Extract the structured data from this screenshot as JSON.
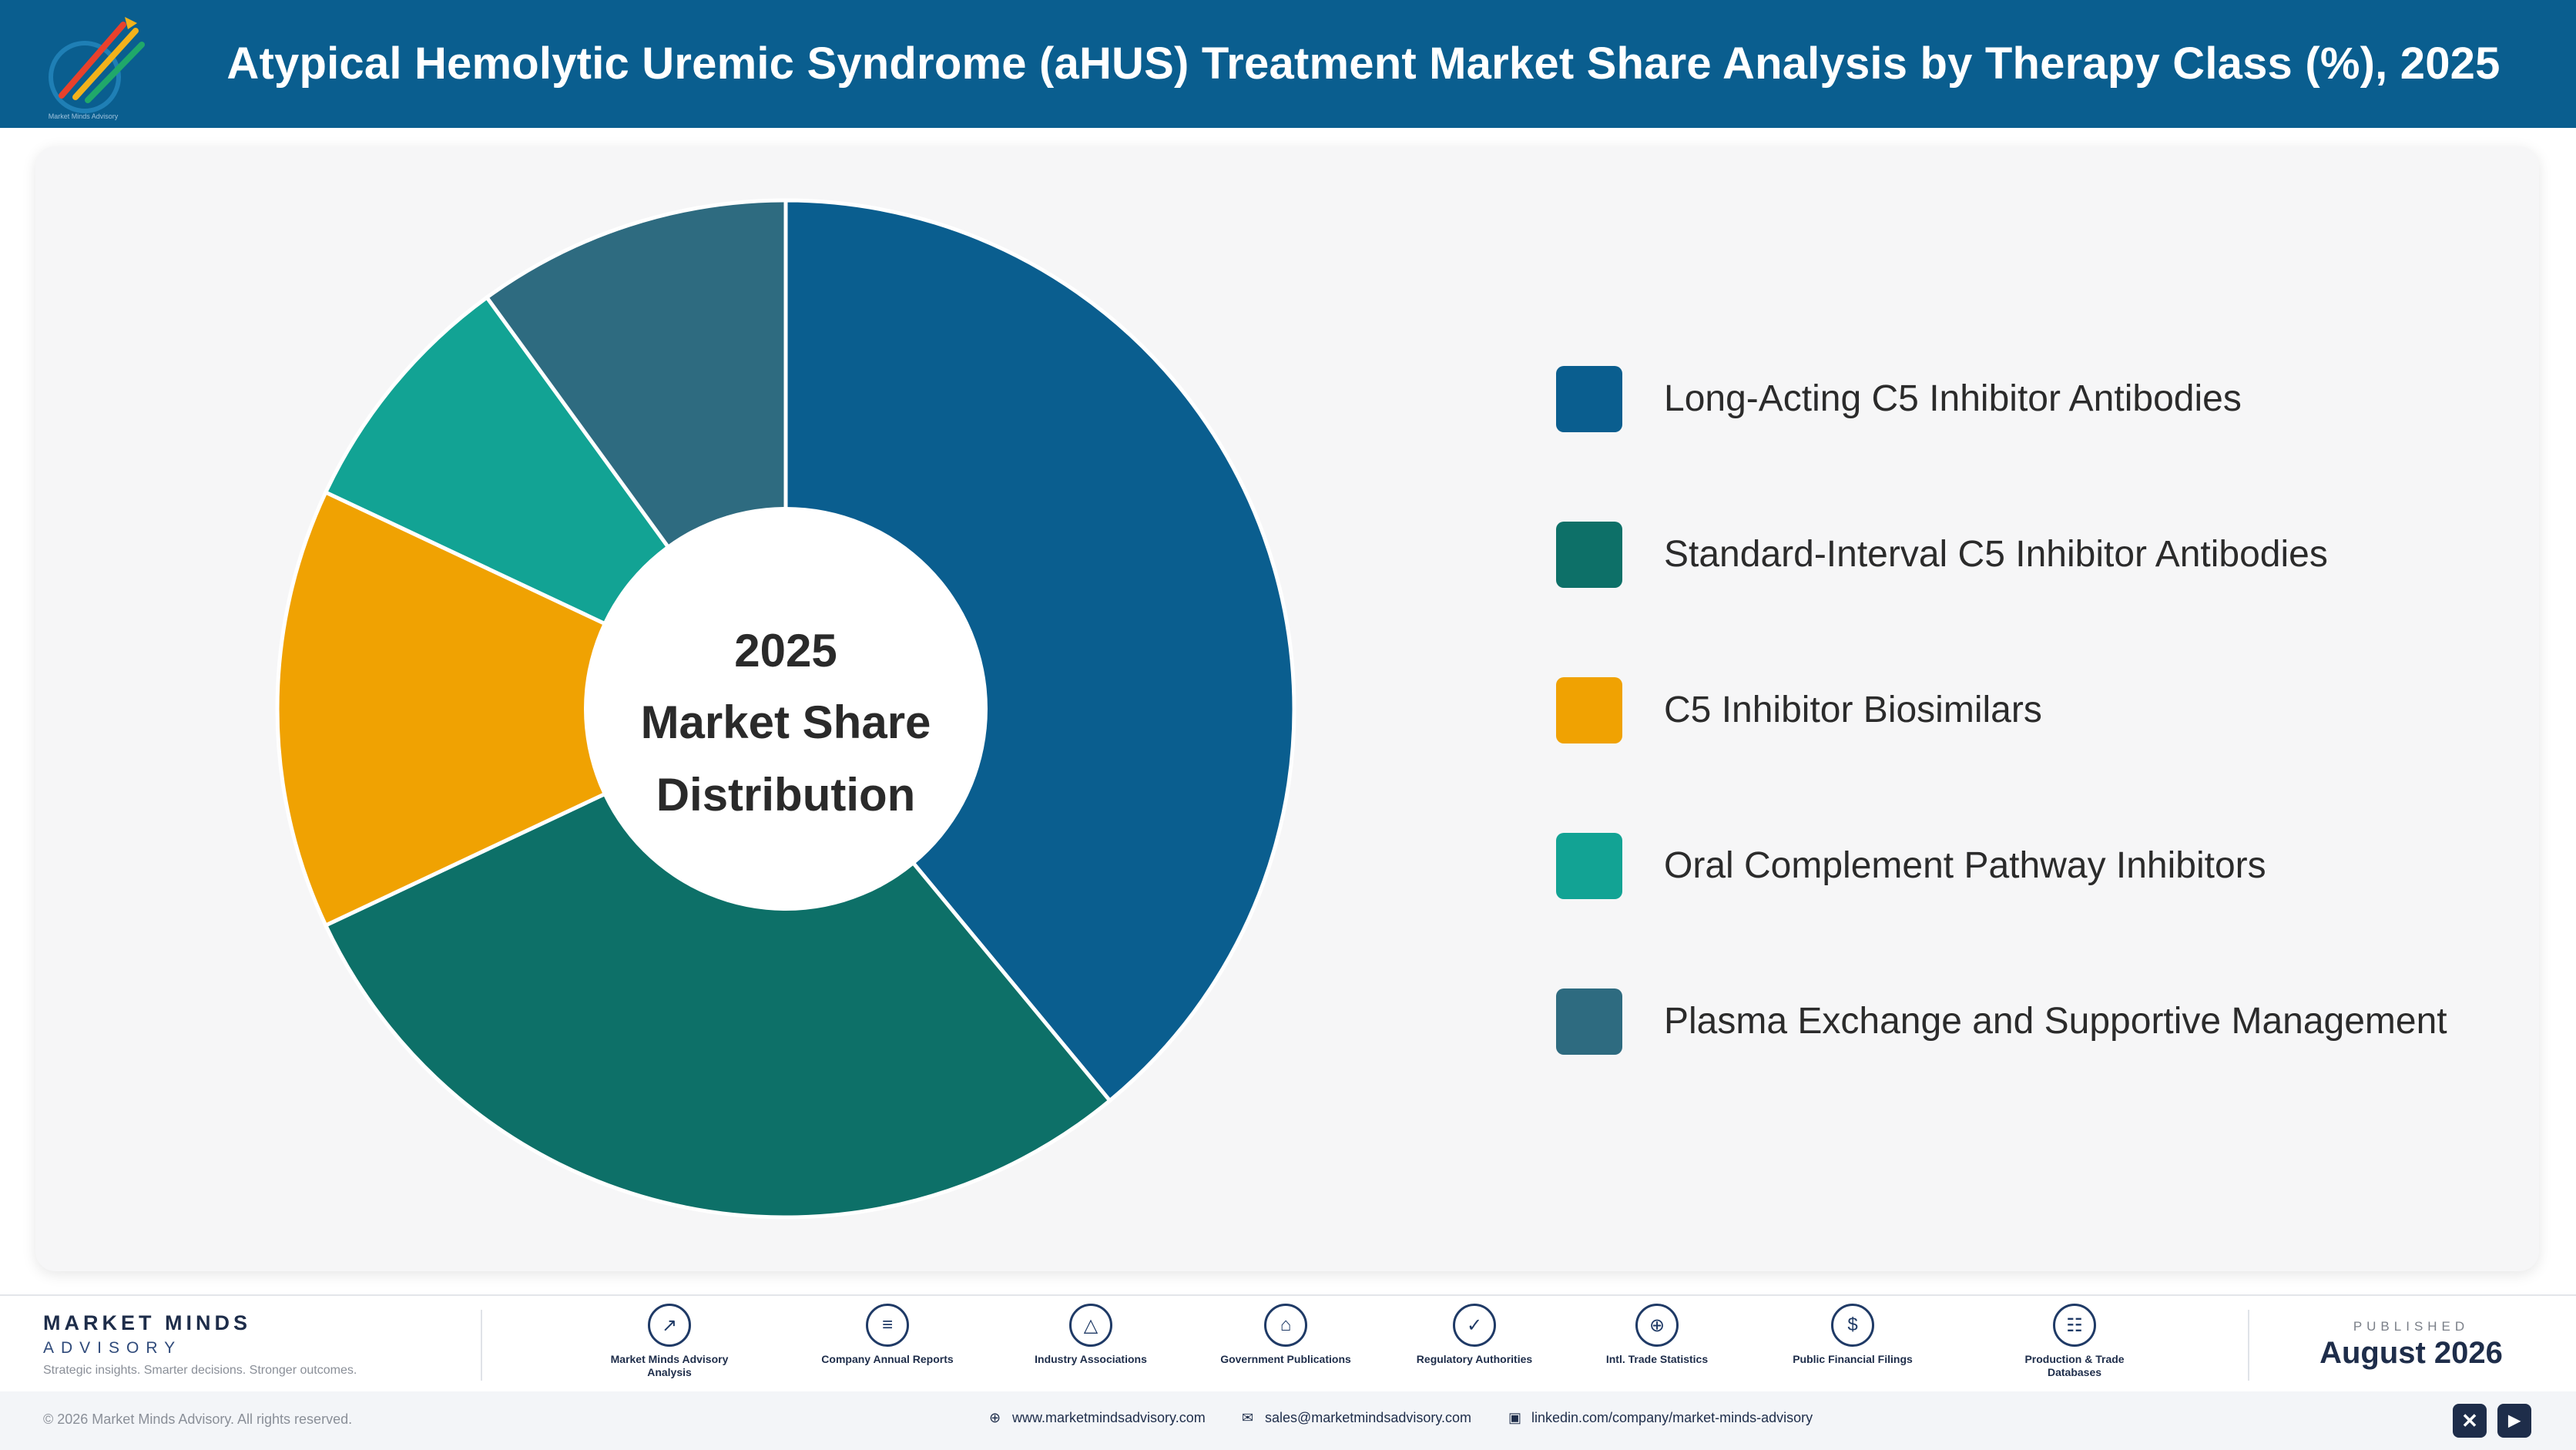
{
  "header": {
    "title": "Atypical Hemolytic Uremic Syndrome (aHUS) Treatment Market Share Analysis by Therapy Class (%), 2025",
    "logo_caption": "Market Minds Advisory"
  },
  "chart_data": {
    "type": "pie",
    "title": "Atypical Hemolytic Uremic Syndrome (aHUS) Treatment Market Share Analysis by Therapy Class (%), 2025",
    "center_label": [
      "2025",
      "Market Share",
      "Distribution"
    ],
    "categories": [
      "Long-Acting C5 Inhibitor Antibodies",
      "Standard-Interval C5 Inhibitor Antibodies",
      "C5 Inhibitor Biosimilars",
      "Oral Complement Pathway Inhibitors",
      "Plasma Exchange and Supportive Management"
    ],
    "values": [
      39,
      29,
      14,
      8,
      10
    ],
    "colors": [
      "#0a5e8f",
      "#0d7068",
      "#f0a202",
      "#12a394",
      "#2e6b80"
    ],
    "donut": true,
    "legend_position": "right"
  },
  "footer": {
    "brand_name": "MARKET MINDS",
    "brand_sub": "ADVISORY",
    "brand_tagline": "Strategic insights. Smarter decisions. Stronger outcomes.",
    "sources": [
      {
        "label": "Market Minds Advisory Analysis",
        "icon": "trend-icon"
      },
      {
        "label": "Company Annual Reports",
        "icon": "document-icon"
      },
      {
        "label": "Industry Associations",
        "icon": "network-icon"
      },
      {
        "label": "Government Publications",
        "icon": "building-icon"
      },
      {
        "label": "Regulatory Authorities",
        "icon": "shield-icon"
      },
      {
        "label": "Intl. Trade Statistics",
        "icon": "globe-icon"
      },
      {
        "label": "Public Financial Filings",
        "icon": "coin-icon"
      },
      {
        "label": "Production & Trade Databases",
        "icon": "database-icon"
      }
    ],
    "published_label": "PUBLISHED",
    "published_date": "August 2026",
    "copyright": "© 2026 Market Minds Advisory. All rights reserved.",
    "website": "www.marketmindsadvisory.com",
    "email": "sales@marketmindsadvisory.com",
    "linkedin": "linkedin.com/company/market-minds-advisory"
  }
}
